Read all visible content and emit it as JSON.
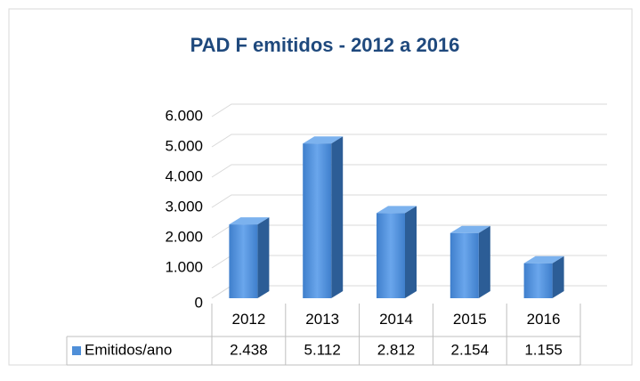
{
  "chart_data": {
    "type": "bar3d",
    "title": "PAD F emitidos - 2012 a 2016",
    "categories": [
      "2012",
      "2013",
      "2014",
      "2015",
      "2016"
    ],
    "series": [
      {
        "name": "Emitidos/ano",
        "color": "#4f8fd8",
        "values": [
          2438,
          5112,
          2812,
          2154,
          1155
        ],
        "value_labels": [
          "2.438",
          "5.112",
          "2.812",
          "2.154",
          "1.155"
        ]
      }
    ],
    "ylim": [
      0,
      6000
    ],
    "yticks": [
      0,
      {
        "value": 1000,
        "label": "1.000"
      },
      {
        "value": 2000,
        "label": "2.000"
      },
      {
        "value": 3000,
        "label": "3.000"
      },
      {
        "value": 4000,
        "label": "4.000"
      },
      {
        "value": 5000,
        "label": "5.000"
      },
      {
        "value": 6000,
        "label": "6.000"
      }
    ],
    "grid": true
  }
}
